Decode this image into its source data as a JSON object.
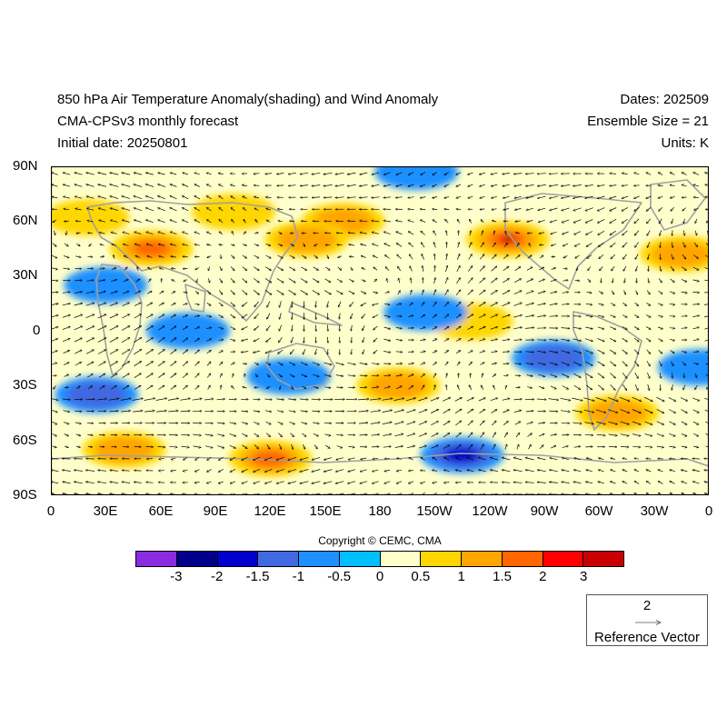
{
  "title": {
    "line1": "850 hPa Air Temperature Anomaly(shading) and Wind Anomaly",
    "line2": "CMA-CPSv3 monthly forecast",
    "line3": "Initial date: 20250801",
    "dates": "Dates: 202509",
    "ensemble": "Ensemble Size = 21",
    "units": "Units: K"
  },
  "lat_labels": [
    "90N",
    "60N",
    "30N",
    "0",
    "30S",
    "60S",
    "90S"
  ],
  "lon_labels": [
    "0",
    "30E",
    "60E",
    "90E",
    "120E",
    "150E",
    "180",
    "150W",
    "120W",
    "90W",
    "60W",
    "30W",
    "0"
  ],
  "copyright": "Copyright © CEMC, CMA",
  "colorbar": {
    "colors": [
      "#8a2be2",
      "#00008b",
      "#0000cd",
      "#4169e1",
      "#1e90ff",
      "#00bfff",
      "#ffffcc",
      "#ffd700",
      "#ffa500",
      "#ff6600",
      "#ff0000",
      "#c80000"
    ],
    "labels": [
      "-3",
      "-2",
      "-1.5",
      "-1",
      "-0.5",
      "0",
      "0.5",
      "1",
      "1.5",
      "2",
      "3"
    ]
  },
  "reference_vector": {
    "value": "2",
    "label": "Reference Vector"
  },
  "map": {
    "background_color": "#ffffcc",
    "anomaly_regions": [
      {
        "lon": 250,
        "lat": 50,
        "value": 3.0
      },
      {
        "lon": 160,
        "lat": 60,
        "value": 1.2
      },
      {
        "lon": 140,
        "lat": 50,
        "value": 1.3
      },
      {
        "lon": 55,
        "lat": 45,
        "value": 1.5
      },
      {
        "lon": 100,
        "lat": 65,
        "value": 0.9
      },
      {
        "lon": 20,
        "lat": 62,
        "value": 0.8
      },
      {
        "lon": 345,
        "lat": 42,
        "value": 1.1
      },
      {
        "lon": 120,
        "lat": -70,
        "value": 1.6
      },
      {
        "lon": 40,
        "lat": -65,
        "value": 1.4
      },
      {
        "lon": 190,
        "lat": -30,
        "value": 1.2
      },
      {
        "lon": 310,
        "lat": -45,
        "value": 1.0
      },
      {
        "lon": 230,
        "lat": 5,
        "value": 0.8
      },
      {
        "lon": 225,
        "lat": -68,
        "value": -1.8
      },
      {
        "lon": 275,
        "lat": -15,
        "value": -1.2
      },
      {
        "lon": 130,
        "lat": -25,
        "value": -0.9
      },
      {
        "lon": 25,
        "lat": -35,
        "value": -1.1
      },
      {
        "lon": 75,
        "lat": 0,
        "value": -0.7
      },
      {
        "lon": 205,
        "lat": 10,
        "value": -0.6
      },
      {
        "lon": 200,
        "lat": 87,
        "value": -0.6
      },
      {
        "lon": 30,
        "lat": 25,
        "value": -0.6
      },
      {
        "lon": 355,
        "lat": -20,
        "value": -0.7
      }
    ]
  }
}
